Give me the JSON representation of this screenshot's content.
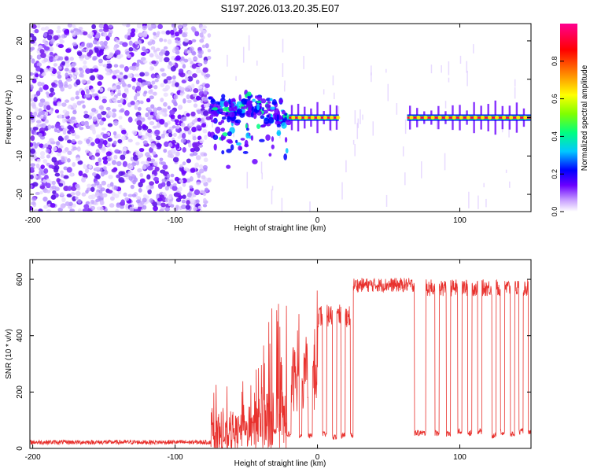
{
  "figure": {
    "title": "S197.2026.013.20.35.E07"
  },
  "chart_data": [
    {
      "type": "heatmap",
      "title": "S197.2026.013.20.35.E07",
      "xlabel": "Height of straight line (km)",
      "ylabel": "Frequency (Hz)",
      "xlim": [
        -202,
        150
      ],
      "ylim": [
        -24.5,
        24.5
      ],
      "x_ticks": [
        -200,
        -100,
        0,
        100
      ],
      "y_ticks": [
        -20,
        -10,
        0,
        10,
        20
      ],
      "colorbar": {
        "label": "Normalized spectral amplitude",
        "range": [
          0,
          1
        ],
        "ticks": [
          0.0,
          0.2,
          0.4,
          0.6,
          0.8
        ],
        "tick_labels": [
          "0.0",
          "0.2",
          "0.4",
          "0.6",
          "0.8"
        ],
        "colormap": [
          "#ffffff",
          "#c8a0ff",
          "#6a00ff",
          "#0000ff",
          "#00c8ff",
          "#00ff80",
          "#80ff00",
          "#ffff00",
          "#ff8000",
          "#ff0000",
          "#ff0090"
        ]
      },
      "regions": [
        {
          "name": "noise-region",
          "x_range": [
            -202,
            -76
          ],
          "frequency_range": [
            -24.5,
            24.5
          ],
          "amplitude": 0.1
        },
        {
          "name": "transition-region",
          "x_range": [
            -76,
            -20
          ],
          "center_frequency": [
            2.5,
            2.8,
            1.5,
            2,
            3,
            3.5,
            3,
            2.5,
            2,
            1.5,
            1
          ],
          "amplitude": 0.3
        },
        {
          "name": "carrier-line-1",
          "x_range": [
            -20,
            15
          ],
          "center_frequency": 0,
          "amplitude": 0.95
        },
        {
          "name": "carrier-line-2",
          "x_range": [
            63,
            150
          ],
          "center_frequency": 0,
          "amplitude": 0.95
        }
      ]
    },
    {
      "type": "line",
      "title": "",
      "xlabel": "Height of straight line (km)",
      "ylabel": "SNR (10 * v/v)",
      "xlim": [
        -202,
        150
      ],
      "ylim": [
        0,
        670
      ],
      "x_ticks": [
        -200,
        -100,
        0,
        100
      ],
      "y_ticks": [
        0,
        200,
        400,
        600
      ],
      "series": [
        {
          "name": "SNR",
          "color": "#e8312d",
          "segments": [
            {
              "x_range": [
                -202,
                -75
              ],
              "level": 22,
              "jitter": 8
            },
            {
              "x_range": [
                -75,
                -60
              ],
              "level": 40,
              "jitter": 60
            },
            {
              "x_range": [
                -60,
                -45
              ],
              "level": 60,
              "jitter": 60
            },
            {
              "x_range": [
                -45,
                -20
              ],
              "level": 100,
              "jitter": 120
            },
            {
              "x_range": [
                -20,
                0
              ],
              "level": 250,
              "jitter": 120
            },
            {
              "x_range": [
                0,
                25
              ],
              "level": 470,
              "jitter": 40
            },
            {
              "x_range": [
                25,
                68
              ],
              "level": 580,
              "jitter": 25
            },
            {
              "x_range": [
                68,
                150
              ],
              "level": 570,
              "jitter": 30
            }
          ],
          "dropouts": [
            {
              "x": -30,
              "width": 2,
              "level": 60
            },
            {
              "x": -20,
              "width": 3,
              "level": 50
            },
            {
              "x": -12,
              "width": 2,
              "level": 40
            },
            {
              "x": -5,
              "width": 3,
              "level": 45
            },
            {
              "x": 5,
              "width": 3,
              "level": 50
            },
            {
              "x": 12,
              "width": 3,
              "level": 40
            },
            {
              "x": 18,
              "width": 3,
              "level": 45
            },
            {
              "x": 24,
              "width": 2,
              "level": 45
            },
            {
              "x": 72,
              "width": 8,
              "level": 55
            },
            {
              "x": 84,
              "width": 3,
              "level": 55
            },
            {
              "x": 92,
              "width": 3,
              "level": 50
            },
            {
              "x": 100,
              "width": 3,
              "level": 60
            },
            {
              "x": 107,
              "width": 3,
              "level": 55
            },
            {
              "x": 114,
              "width": 3,
              "level": 60
            },
            {
              "x": 124,
              "width": 3,
              "level": 45
            },
            {
              "x": 130,
              "width": 3,
              "level": 55
            },
            {
              "x": 137,
              "width": 3,
              "level": 50
            },
            {
              "x": 143,
              "width": 3,
              "level": 60
            },
            {
              "x": 149,
              "width": 2,
              "level": 55
            }
          ]
        }
      ]
    }
  ]
}
